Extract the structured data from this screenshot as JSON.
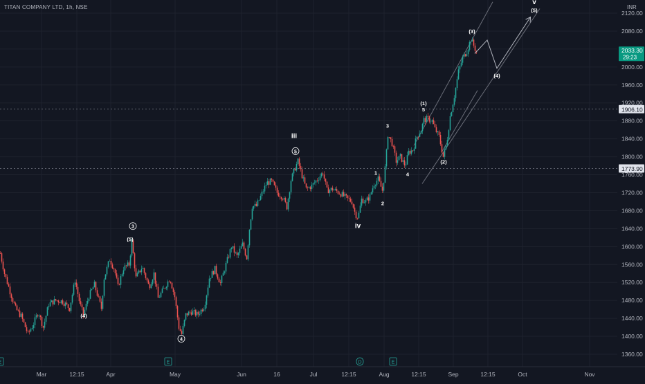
{
  "header": {
    "symbol_title": "TITAN COMPANY LTD, 1h, NSE"
  },
  "colors": {
    "background": "#131722",
    "grid": "#1e222d",
    "up": "#26a69a",
    "down": "#ef5350",
    "text": "#b2b5be",
    "wave_label": "#ffffff",
    "projection": "#b2b5be",
    "price_badge": "#089981",
    "level_badge": "#e0e3eb"
  },
  "chart_data": {
    "type": "candlestick",
    "currency_label": "INR",
    "y_ticks": [
      1360,
      1400,
      1440,
      1480,
      1520,
      1560,
      1600,
      1640,
      1680,
      1720,
      1760,
      1800,
      1840,
      1880,
      1920,
      1960,
      2000,
      2040,
      2080,
      2120
    ],
    "y_tick_labels": [
      "1360.00",
      "1400.00",
      "1440.00",
      "1480.00",
      "1520.00",
      "1560.00",
      "1600.00",
      "1640.00",
      "1680.00",
      "1720.00",
      "1760.00",
      "1800.00",
      "1840.00",
      "1880.00",
      "1920.00",
      "1960.00",
      "2000.00",
      "2040.00",
      "2080.00",
      "2120.00"
    ],
    "ylim": [
      1340,
      2145
    ],
    "x_ticks": [
      {
        "label": "Mar",
        "t": 60
      },
      {
        "label": "12:15",
        "t": 111
      },
      {
        "label": "Apr",
        "t": 160
      },
      {
        "label": "May",
        "t": 253
      },
      {
        "label": "Jun",
        "t": 349
      },
      {
        "label": "16",
        "t": 400
      },
      {
        "label": "Jul",
        "t": 453
      },
      {
        "label": "12:15",
        "t": 504
      },
      {
        "label": "Aug",
        "t": 555
      },
      {
        "label": "12:15",
        "t": 605
      },
      {
        "label": "Sep",
        "t": 655
      },
      {
        "label": "12:15",
        "t": 705
      },
      {
        "label": "Oct",
        "t": 755
      },
      {
        "label": "Nov",
        "t": 852
      }
    ],
    "close_path": [
      [
        0,
        1585
      ],
      [
        6,
        1540
      ],
      [
        15,
        1495
      ],
      [
        22,
        1462
      ],
      [
        30,
        1445
      ],
      [
        40,
        1405
      ],
      [
        48,
        1428
      ],
      [
        55,
        1455
      ],
      [
        62,
        1420
      ],
      [
        70,
        1472
      ],
      [
        80,
        1480
      ],
      [
        90,
        1478
      ],
      [
        100,
        1462
      ],
      [
        108,
        1525
      ],
      [
        115,
        1472
      ],
      [
        120,
        1448
      ],
      [
        128,
        1490
      ],
      [
        136,
        1515
      ],
      [
        146,
        1462
      ],
      [
        150,
        1530
      ],
      [
        158,
        1572
      ],
      [
        165,
        1548
      ],
      [
        170,
        1510
      ],
      [
        178,
        1552
      ],
      [
        186,
        1560
      ],
      [
        190,
        1610
      ],
      [
        196,
        1530
      ],
      [
        205,
        1555
      ],
      [
        215,
        1510
      ],
      [
        222,
        1540
      ],
      [
        228,
        1485
      ],
      [
        236,
        1505
      ],
      [
        245,
        1530
      ],
      [
        252,
        1488
      ],
      [
        258,
        1420
      ],
      [
        262,
        1405
      ],
      [
        268,
        1448
      ],
      [
        276,
        1455
      ],
      [
        285,
        1448
      ],
      [
        295,
        1468
      ],
      [
        302,
        1530
      ],
      [
        310,
        1550
      ],
      [
        318,
        1518
      ],
      [
        326,
        1560
      ],
      [
        334,
        1600
      ],
      [
        342,
        1578
      ],
      [
        350,
        1605
      ],
      [
        356,
        1575
      ],
      [
        360,
        1640
      ],
      [
        364,
        1690
      ],
      [
        370,
        1690
      ],
      [
        378,
        1718
      ],
      [
        385,
        1742
      ],
      [
        392,
        1745
      ],
      [
        400,
        1720
      ],
      [
        408,
        1710
      ],
      [
        414,
        1688
      ],
      [
        420,
        1748
      ],
      [
        425,
        1772
      ],
      [
        430,
        1790
      ],
      [
        436,
        1758
      ],
      [
        442,
        1728
      ],
      [
        450,
        1735
      ],
      [
        458,
        1750
      ],
      [
        466,
        1765
      ],
      [
        472,
        1725
      ],
      [
        480,
        1728
      ],
      [
        490,
        1720
      ],
      [
        500,
        1708
      ],
      [
        508,
        1700
      ],
      [
        513,
        1672
      ],
      [
        517,
        1665
      ],
      [
        522,
        1705
      ],
      [
        528,
        1700
      ],
      [
        534,
        1712
      ],
      [
        540,
        1740
      ],
      [
        546,
        1750
      ],
      [
        552,
        1725
      ],
      [
        555,
        1760
      ],
      [
        557,
        1790
      ],
      [
        560,
        1850
      ],
      [
        566,
        1830
      ],
      [
        572,
        1790
      ],
      [
        578,
        1800
      ],
      [
        585,
        1780
      ],
      [
        590,
        1810
      ],
      [
        596,
        1815
      ],
      [
        602,
        1845
      ],
      [
        608,
        1860
      ],
      [
        612,
        1882
      ],
      [
        618,
        1885
      ],
      [
        624,
        1880
      ],
      [
        628,
        1862
      ],
      [
        634,
        1845
      ],
      [
        640,
        1800
      ],
      [
        645,
        1830
      ],
      [
        650,
        1890
      ],
      [
        656,
        1935
      ],
      [
        662,
        1990
      ],
      [
        668,
        2020
      ],
      [
        674,
        2035
      ],
      [
        680,
        2062
      ],
      [
        684,
        2048
      ],
      [
        688,
        2033
      ]
    ],
    "reference_levels": [
      {
        "value": 1906.1,
        "label": "1906.10"
      },
      {
        "value": 1773.9,
        "label": "1773.90"
      }
    ],
    "last_price": {
      "value": 2033.3,
      "label": "2033.30",
      "countdown": "29:23"
    },
    "channel_lines": [
      {
        "from": [
          610,
          1740
        ],
        "to": [
          780,
          2130
        ]
      },
      {
        "from": [
          598,
          1825
        ],
        "to": [
          712,
          2145
        ]
      },
      {
        "from": [
          638,
          1810
        ],
        "to": [
          690,
          1948
        ]
      }
    ],
    "projection_path": [
      [
        686,
        2030
      ],
      [
        704,
        2060
      ],
      [
        718,
        1997
      ],
      [
        766,
        2110
      ]
    ],
    "wave_labels": [
      {
        "text": "(4)",
        "t": 121,
        "v": 1442
      },
      {
        "text": "3",
        "t": 192,
        "v": 1641,
        "circled": true
      },
      {
        "text": "(5)",
        "t": 188,
        "v": 1612
      },
      {
        "text": "4",
        "t": 262,
        "v": 1390,
        "circled": true
      },
      {
        "text": "iii",
        "t": 425,
        "v": 1842
      },
      {
        "text": "5",
        "t": 427,
        "v": 1808,
        "circled": true
      },
      {
        "text": "iv",
        "t": 517,
        "v": 1641
      },
      {
        "text": "1",
        "t": 543,
        "v": 1760
      },
      {
        "text": "2",
        "t": 553,
        "v": 1692
      },
      {
        "text": "3",
        "t": 560,
        "v": 1865
      },
      {
        "text": "4",
        "t": 589,
        "v": 1757
      },
      {
        "text": "(1)",
        "t": 612,
        "v": 1915
      },
      {
        "text": "5",
        "t": 612,
        "v": 1901
      },
      {
        "text": "(2)",
        "t": 641,
        "v": 1785
      },
      {
        "text": "(3)",
        "t": 682,
        "v": 2075
      },
      {
        "text": "(4)",
        "t": 718,
        "v": 1977
      },
      {
        "text": "v",
        "t": 772,
        "v": 2140
      },
      {
        "text": "(5)",
        "t": 772,
        "v": 2122
      }
    ],
    "event_markers": [
      {
        "text": "E",
        "t": 0
      },
      {
        "text": "E",
        "t": 243
      },
      {
        "text": "D",
        "t": 520
      },
      {
        "text": "E",
        "t": 568
      }
    ]
  }
}
